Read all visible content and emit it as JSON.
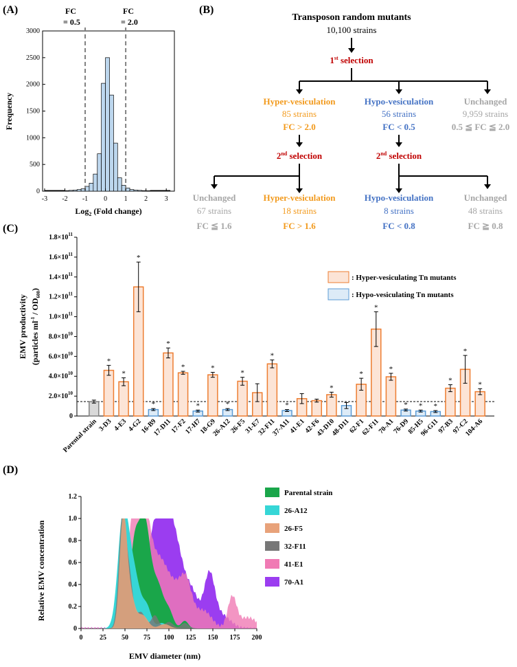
{
  "panels": {
    "A": "(A)",
    "B": "(B)",
    "C": "(C)",
    "D": "(D)"
  },
  "chart_data": [
    {
      "type": "bar",
      "id": "histogram",
      "xlabel": "Log",
      "xlabel_sub": "2",
      "xlabel_rest": " (Fold change)",
      "ylabel": "Frequency",
      "xlim": [
        -3.1,
        3.4
      ],
      "ylim": [
        0,
        3000
      ],
      "yticks": [
        0,
        500,
        1000,
        1500,
        2000,
        2500,
        3000
      ],
      "xticks": [
        -3,
        -2,
        -1,
        0,
        1,
        2,
        3
      ],
      "bin_width": 0.2,
      "bin_starts": [
        -2.0,
        -1.8,
        -1.6,
        -1.4,
        -1.2,
        -1.0,
        -0.8,
        -0.6,
        -0.4,
        -0.2,
        0.0,
        0.2,
        0.4,
        0.6,
        0.8,
        1.0,
        1.2,
        1.4,
        1.6,
        1.8,
        2.0
      ],
      "values": [
        10,
        15,
        20,
        30,
        45,
        90,
        150,
        320,
        700,
        2020,
        2500,
        1800,
        900,
        250,
        110,
        60,
        30,
        20,
        15,
        10,
        8
      ],
      "vlines": [
        {
          "x": -1,
          "label1": "FC",
          "label2": "= 0.5"
        },
        {
          "x": 1,
          "label1": "FC",
          "label2": "= 2.0"
        }
      ]
    },
    {
      "type": "bar",
      "id": "emv_productivity",
      "ylabel_main": "EMV productivity",
      "ylabel_sub": "(particles ml",
      "ylabel_sup": "-1",
      "ylabel_mid": " / OD",
      "ylabel_sub2": "600",
      "ylabel_end": ")",
      "ylim": [
        0,
        180000000000.0
      ],
      "yticks": [
        {
          "base": "0",
          "exp": ""
        },
        {
          "base": "2.0×10",
          "exp": "10"
        },
        {
          "base": "4.0×10",
          "exp": "10"
        },
        {
          "base": "6.0×10",
          "exp": "10"
        },
        {
          "base": "8.0×10",
          "exp": "10"
        },
        {
          "base": "1.0×10",
          "exp": "11"
        },
        {
          "base": "1.2×10",
          "exp": "11"
        },
        {
          "base": "1.4×10",
          "exp": "11"
        },
        {
          "base": "1.6×10",
          "exp": "11"
        },
        {
          "base": "1.8×10",
          "exp": "11"
        }
      ],
      "baseline": 14500000000.0,
      "legend": [
        {
          "label": ": Hyper-vesiculating Tn mutants",
          "kind": "hyper"
        },
        {
          "label": ": Hypo-vesiculating Tn mutants",
          "kind": "hypo"
        }
      ],
      "categories": [
        "Parental strain",
        "3-D3",
        "4-E3",
        "4-G2",
        "16-B9",
        "17-D11",
        "17-F2",
        "17-H7",
        "18-G9",
        "26-A12",
        "26-F5",
        "31-E7",
        "32-F11",
        "37-A11",
        "41-E1",
        "42-F6",
        "43-D10",
        "48-D11",
        "62-F1",
        "62-F11",
        "70-A1",
        "76-D9",
        "85-H5",
        "96-G11",
        "97-B3",
        "97-C2",
        "104-A6"
      ],
      "values": [
        14500000000.0,
        46000000000.0,
        34500000000.0,
        130000000000.0,
        6500000000.0,
        63500000000.0,
        43500000000.0,
        5000000000.0,
        41500000000.0,
        6500000000.0,
        35000000000.0,
        23500000000.0,
        52500000000.0,
        5500000000.0,
        17500000000.0,
        15500000000.0,
        21500000000.0,
        10500000000.0,
        32000000000.0,
        87500000000.0,
        39500000000.0,
        6000000000.0,
        5000000000.0,
        4500000000.0,
        28000000000.0,
        47000000000.0,
        24500000000.0
      ],
      "errors": [
        1500000000.0,
        5000000000.0,
        4000000000.0,
        25000000000.0,
        1000000000.0,
        5000000000.0,
        1500000000.0,
        1000000000.0,
        2500000000.0,
        1000000000.0,
        4000000000.0,
        9000000000.0,
        4000000000.0,
        1000000000.0,
        5000000000.0,
        1500000000.0,
        2500000000.0,
        3000000000.0,
        6000000000.0,
        17500000000.0,
        3500000000.0,
        1000000000.0,
        1000000000.0,
        1000000000.0,
        3500000000.0,
        14000000000.0,
        3000000000.0
      ],
      "kind": [
        "ref",
        "hyper",
        "hyper",
        "hyper",
        "hypo",
        "hyper",
        "hyper",
        "hypo",
        "hyper",
        "hypo",
        "hyper",
        "hyper",
        "hyper",
        "hypo",
        "hyper",
        "hyper",
        "hyper",
        "hypo",
        "hyper",
        "hyper",
        "hyper",
        "hypo",
        "hypo",
        "hypo",
        "hyper",
        "hyper",
        "hyper"
      ],
      "sig": [
        false,
        true,
        true,
        true,
        true,
        true,
        true,
        true,
        true,
        true,
        true,
        false,
        true,
        true,
        false,
        false,
        true,
        false,
        true,
        true,
        true,
        true,
        true,
        true,
        true,
        true,
        true
      ],
      "star": "*"
    },
    {
      "type": "area",
      "id": "size_distribution",
      "xlabel": "EMV diameter (nm)",
      "ylabel": "Relative EMV concentration",
      "xlim": [
        0,
        200
      ],
      "ylim": [
        0,
        1.2
      ],
      "xticks": [
        0,
        25,
        50,
        75,
        100,
        125,
        150,
        175,
        200
      ],
      "yticks": [
        "0",
        "0.2",
        "0.4",
        "0.6",
        "0.8",
        "1.0",
        "1.2"
      ],
      "series": [
        {
          "name": "Parental strain",
          "color": "#1aa64a",
          "peaks": [
            [
              72,
              1.0,
              7
            ],
            [
              60,
              0.6,
              5
            ],
            [
              88,
              0.35,
              6
            ],
            [
              100,
              0.15,
              5
            ],
            [
              118,
              0.07,
              4
            ]
          ]
        },
        {
          "name": "26-A12",
          "color": "#36d6d6",
          "peaks": [
            [
              48,
              1.0,
              6
            ],
            [
              60,
              0.5,
              7
            ],
            [
              75,
              0.18,
              5
            ],
            [
              92,
              0.05,
              5
            ]
          ]
        },
        {
          "name": "26-F5",
          "color": "#e8a27a",
          "peaks": [
            [
              48,
              1.0,
              4
            ],
            [
              56,
              0.3,
              5
            ],
            [
              70,
              0.12,
              6
            ],
            [
              95,
              0.04,
              6
            ]
          ]
        },
        {
          "name": "32-F11",
          "color": "#777777",
          "peaks": [
            [
              47,
              1.0,
              4
            ],
            [
              55,
              0.45,
              4
            ],
            [
              68,
              0.15,
              5
            ],
            [
              84,
              0.12,
              4
            ],
            [
              100,
              0.06,
              5
            ],
            [
              118,
              0.05,
              4
            ]
          ]
        },
        {
          "name": "41-E1",
          "color": "#f07ab4",
          "peaks": [
            [
              60,
              1.0,
              7
            ],
            [
              72,
              0.85,
              7
            ],
            [
              88,
              0.55,
              10
            ],
            [
              110,
              0.35,
              12
            ],
            [
              120,
              0.22,
              6
            ],
            [
              140,
              0.15,
              9
            ],
            [
              172,
              0.28,
              5
            ],
            [
              190,
              0.1,
              10
            ]
          ]
        },
        {
          "name": "70-A1",
          "color": "#9b3df0",
          "peaks": [
            [
              96,
              0.98,
              10
            ],
            [
              80,
              0.6,
              8
            ],
            [
              112,
              0.45,
              9
            ],
            [
              128,
              0.25,
              7
            ],
            [
              146,
              0.47,
              6
            ],
            [
              160,
              0.12,
              10
            ]
          ]
        }
      ]
    }
  ],
  "flow": {
    "root_title": "Transposon random mutants",
    "root_count": "10,100 strains",
    "sel1_pre": "1",
    "sel1_sup": "st",
    "sel1_post": " selection",
    "sel2_pre": "2",
    "sel2_sup": "nd",
    "sel2_post": " selection",
    "hyper1": {
      "title": "Hyper-vesiculation",
      "count": "85 strains",
      "fc": "FC > 2.0"
    },
    "hypo1": {
      "title": "Hypo-vesiculation",
      "count": "56 strains",
      "fc": "FC < 0.5"
    },
    "unch1": {
      "title": "Unchanged",
      "count": "9,959 strains",
      "fc": "0.5 ≦ FC ≦ 2.0"
    },
    "unch_a": {
      "title": "Unchanged",
      "count": "67 strains",
      "fc": "FC ≦ 1.6"
    },
    "hyper2": {
      "title": "Hyper-vesiculation",
      "count": "18 strains",
      "fc": "FC > 1.6"
    },
    "hypo2": {
      "title": "Hypo-vesiculation",
      "count": "8 strains",
      "fc": "FC < 0.8"
    },
    "unch_b": {
      "title": "Unchanged",
      "count": "48 strains",
      "fc": "FC ≧ 0.8"
    },
    "colors": {
      "hyper": "#f29a1d",
      "hypo": "#4472c4",
      "unch": "#a6a6a6",
      "sel": "#c00000"
    }
  }
}
